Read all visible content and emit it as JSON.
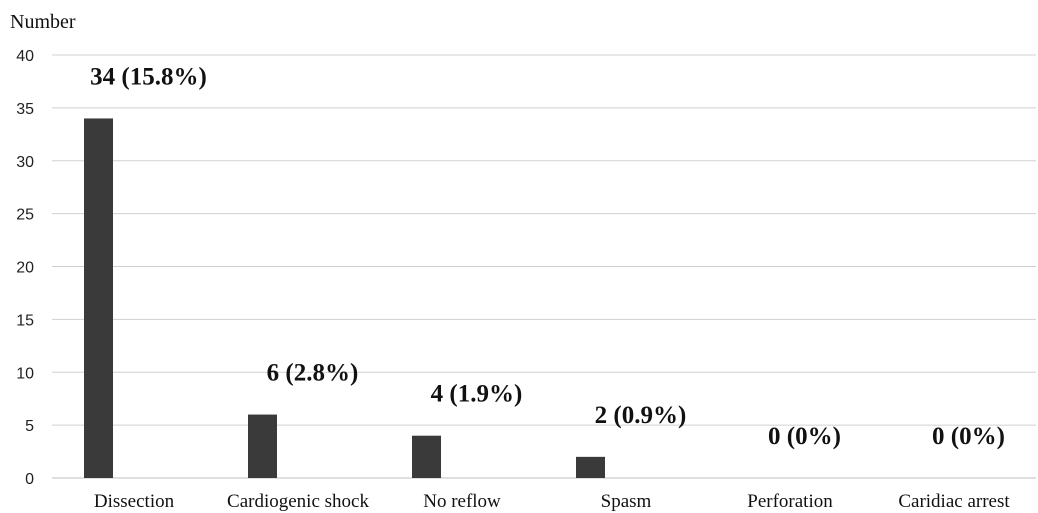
{
  "chart_data": {
    "type": "bar",
    "title": "",
    "xlabel": "",
    "ylabel": "Number",
    "ylim": [
      0,
      40
    ],
    "yticks": [
      0,
      5,
      10,
      15,
      20,
      25,
      30,
      35,
      40
    ],
    "grid": true,
    "legend": "none",
    "categories": [
      "Dissection",
      "Cardiogenic shock",
      "No reflow",
      "Spasm",
      "Perforation",
      "Caridiac arrest"
    ],
    "values": [
      34,
      6,
      4,
      2,
      0,
      0
    ],
    "data_labels": [
      "34 (15.8%)",
      "6 (2.8%)",
      "4 (1.9%)",
      "2 (0.9%)",
      "0 (0%)",
      "0 (0%)"
    ],
    "bar_color": "#3a3a3a"
  }
}
